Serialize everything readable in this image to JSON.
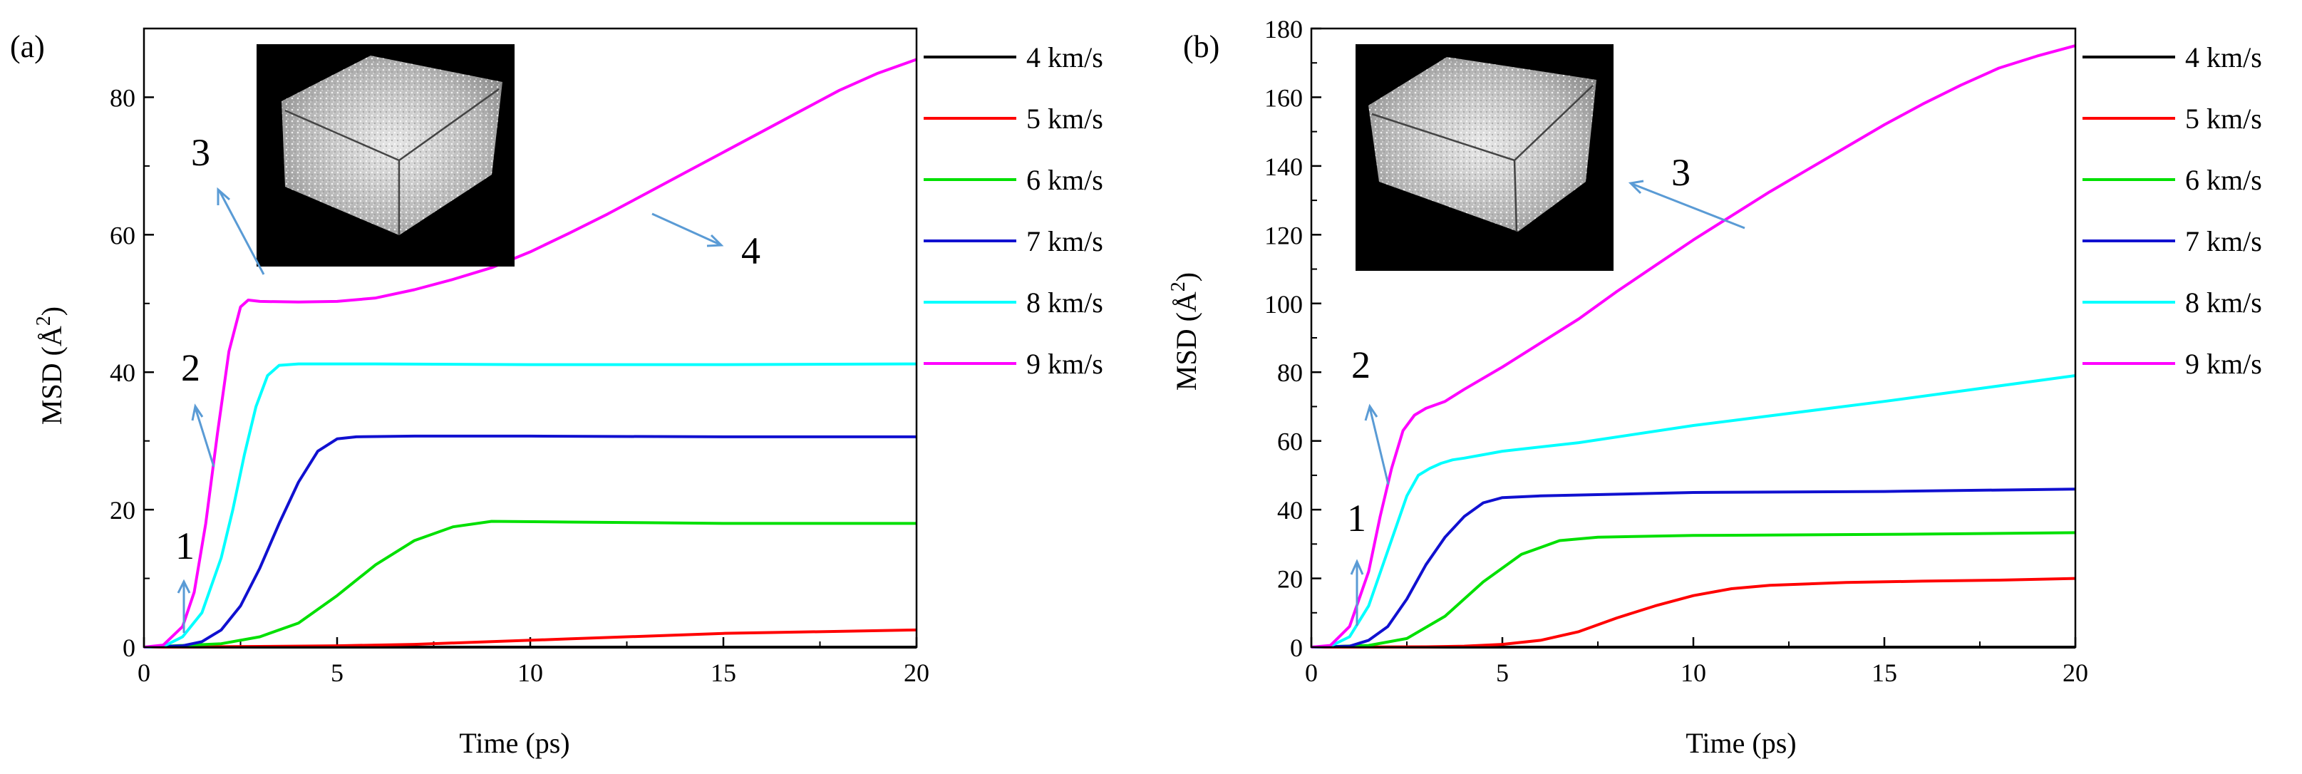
{
  "chart_data": [
    {
      "panel_label": "(a)",
      "type": "line",
      "xlabel": "Time (ps)",
      "ylabel": "MSD (Å2)",
      "xlim": [
        0,
        20
      ],
      "ylim": [
        0,
        90
      ],
      "xticks": [
        0,
        5,
        10,
        15,
        20
      ],
      "yticks": [
        0,
        20,
        40,
        60,
        80
      ],
      "grid": false,
      "legend_position": "right-outside",
      "series": [
        {
          "name": "4 km/s",
          "color": "#000000",
          "x": [
            0,
            5,
            10,
            15,
            20
          ],
          "y": [
            0,
            0,
            0,
            0,
            0
          ]
        },
        {
          "name": "5 km/s",
          "color": "#ff0000",
          "x": [
            0,
            3,
            5,
            7,
            9,
            11,
            13,
            15,
            17,
            20
          ],
          "y": [
            0,
            0.1,
            0.2,
            0.4,
            0.8,
            1.2,
            1.6,
            2.0,
            2.2,
            2.5
          ]
        },
        {
          "name": "6 km/s",
          "color": "#00e000",
          "x": [
            0,
            2,
            3,
            4,
            5,
            6,
            7,
            8,
            9,
            11,
            13,
            15,
            17,
            20
          ],
          "y": [
            0,
            0.5,
            1.5,
            3.5,
            7.5,
            12,
            15.5,
            17.5,
            18.3,
            18.2,
            18.1,
            18.0,
            18.0,
            18.0
          ]
        },
        {
          "name": "7 km/s",
          "color": "#1010d0",
          "x": [
            0,
            1,
            1.5,
            2,
            2.5,
            3,
            3.5,
            4,
            4.5,
            5,
            5.5,
            7,
            10,
            15,
            20
          ],
          "y": [
            0,
            0.2,
            0.8,
            2.5,
            6,
            11.5,
            18,
            24,
            28.5,
            30.3,
            30.6,
            30.7,
            30.7,
            30.6,
            30.6
          ]
        },
        {
          "name": "8 km/s",
          "color": "#00ffff",
          "x": [
            0,
            0.5,
            1,
            1.5,
            2,
            2.3,
            2.6,
            2.9,
            3.2,
            3.5,
            4,
            6,
            10,
            15,
            20
          ],
          "y": [
            0,
            0.1,
            1.5,
            5,
            13,
            20,
            28,
            35,
            39.5,
            41,
            41.2,
            41.2,
            41.1,
            41.1,
            41.2
          ]
        },
        {
          "name": "9 km/s",
          "color": "#ff00ff",
          "x": [
            0,
            0.5,
            1,
            1.3,
            1.6,
            1.9,
            2.2,
            2.5,
            2.7,
            3,
            4,
            5,
            6,
            7,
            8,
            9,
            10,
            11,
            12,
            13,
            14,
            15,
            16,
            17,
            18,
            19,
            20
          ],
          "y": [
            0,
            0.3,
            3,
            8,
            18,
            31,
            43,
            49.5,
            50.5,
            50.3,
            50.2,
            50.3,
            50.8,
            52,
            53.5,
            55.2,
            57.5,
            60.2,
            63,
            66,
            69,
            72,
            75,
            78,
            81,
            83.5,
            85.5
          ]
        }
      ],
      "annotations": [
        "1",
        "2",
        "3",
        "4"
      ],
      "inset": "atomic-configuration-box"
    },
    {
      "panel_label": "(b)",
      "type": "line",
      "xlabel": "Time (ps)",
      "ylabel": "MSD (Å2)",
      "xlim": [
        0,
        20
      ],
      "ylim": [
        0,
        180
      ],
      "xticks": [
        0,
        5,
        10,
        15,
        20
      ],
      "yticks": [
        0,
        20,
        40,
        60,
        80,
        100,
        120,
        140,
        160,
        180
      ],
      "grid": false,
      "legend_position": "right-outside",
      "series": [
        {
          "name": "4 km/s",
          "color": "#000000",
          "x": [
            0,
            5,
            10,
            15,
            20
          ],
          "y": [
            0,
            0,
            0,
            0,
            0
          ]
        },
        {
          "name": "5 km/s",
          "color": "#ff0000",
          "x": [
            0,
            3,
            4,
            5,
            6,
            7,
            8,
            9,
            10,
            11,
            12,
            14,
            16,
            18,
            20
          ],
          "y": [
            0,
            0.1,
            0.3,
            0.8,
            2,
            4.5,
            8.5,
            12,
            15,
            17,
            18,
            18.8,
            19.2,
            19.5,
            20
          ]
        },
        {
          "name": "6 km/s",
          "color": "#00e000",
          "x": [
            0,
            1.5,
            2.5,
            3.5,
            4.5,
            5.5,
            6.5,
            7.5,
            10,
            15,
            20
          ],
          "y": [
            0,
            0.5,
            2.5,
            9,
            19,
            27,
            31,
            32,
            32.5,
            32.8,
            33.3
          ]
        },
        {
          "name": "7 km/s",
          "color": "#1010d0",
          "x": [
            0,
            1,
            1.5,
            2,
            2.5,
            3,
            3.5,
            4,
            4.5,
            5,
            6,
            10,
            15,
            20
          ],
          "y": [
            0,
            0.3,
            2,
            6,
            14,
            24,
            32,
            38,
            42,
            43.5,
            44,
            45,
            45.3,
            46
          ]
        },
        {
          "name": "8 km/s",
          "color": "#00ffff",
          "x": [
            0,
            0.5,
            1,
            1.5,
            2,
            2.5,
            2.8,
            3.1,
            3.4,
            3.7,
            4,
            4.5,
            5,
            7,
            10,
            15,
            20
          ],
          "y": [
            0,
            0.3,
            3,
            12,
            28,
            44,
            50,
            52,
            53.5,
            54.5,
            55,
            56,
            57,
            59.5,
            64.5,
            71.5,
            79
          ]
        },
        {
          "name": "9 km/s",
          "color": "#ff00ff",
          "x": [
            0,
            0.5,
            1,
            1.5,
            1.8,
            2.1,
            2.4,
            2.7,
            3,
            3.5,
            4,
            5,
            6,
            7,
            8,
            9,
            10,
            11,
            12,
            13,
            14,
            15,
            16,
            17,
            18,
            19,
            20
          ],
          "y": [
            0,
            0.5,
            6,
            22,
            38,
            52,
            63,
            67.5,
            69.5,
            71.5,
            75,
            81.5,
            88.5,
            95.5,
            103.5,
            111,
            118.5,
            125.5,
            132.5,
            139,
            145.5,
            152,
            158,
            163.5,
            168.5,
            172,
            175
          ]
        }
      ],
      "annotations": [
        "1",
        "2",
        "3"
      ],
      "inset": "atomic-configuration-box"
    }
  ]
}
